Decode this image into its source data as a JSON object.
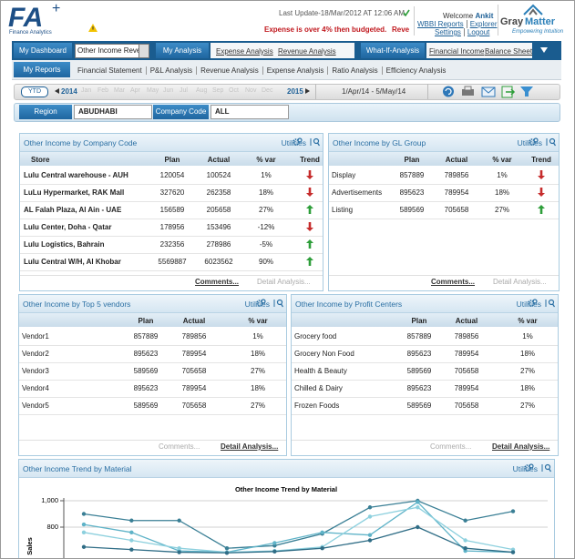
{
  "header": {
    "logo": "FA",
    "logo_mark": "+",
    "logo_sub": "Finance Analytics",
    "last_update": "Last Update-18/Mar/2012 AT 12:06 AM",
    "alert": "Expense is over 4% then budgeted.",
    "alert_more": "Reve",
    "welcome": "Welcome",
    "user": "Ankit",
    "links": [
      "WBBI Reports",
      "Explorer",
      "Settings",
      "Logout"
    ],
    "brand": "Gray",
    "brand2": "Matter",
    "tagline": "Empowering Intuition"
  },
  "nav": {
    "dashboard": "My Dashboard",
    "dashboard_select": "Other Income Reve",
    "analysis": "My Analysis",
    "analysis_links": [
      "Expense Analysis",
      "Revenue Analysis"
    ],
    "whatif": "What-If-Analysis",
    "whatif_links": [
      "Financial Income",
      "Balance Sheet"
    ],
    "reports": "My Reports",
    "report_links": [
      "Financial Statement",
      "P&L Analysis",
      "Revenue Analysis",
      "Expense Analysis",
      "Ratio Analysis",
      "Efficiency Analysis"
    ]
  },
  "timeline": {
    "period": "YTD",
    "start_year": "2014",
    "months": [
      "Jan",
      "Feb",
      "Mar",
      "Apr",
      "May",
      "Jun",
      "Jul",
      "Aug",
      "Sep",
      "Oct",
      "Nov",
      "Dec"
    ],
    "end_year": "2015",
    "range": "1/Apr/14 - 5/May/14"
  },
  "filters": {
    "region_label": "Region",
    "region": "ABUDHABI",
    "company_label": "Company Code",
    "company": "ALL"
  },
  "panels": [
    {
      "title": "Other Income by Company Code",
      "utilities": "Utilities",
      "name_column": "Store",
      "columns": [
        "Plan",
        "Actual",
        "% var",
        "Trend"
      ],
      "rows": [
        [
          "Lulu Central warehouse - AUH",
          "120054",
          "100524",
          "1%"
        ],
        [
          "LuLu Hypermarket, RAK Mall",
          "327620",
          "262358",
          "18%"
        ],
        [
          "AL Falah Plaza, Al Ain - UAE",
          "156589",
          "205658",
          "27%"
        ],
        [
          "Lulu Center, Doha - Qatar",
          "178956",
          "153496",
          "-12%"
        ],
        [
          "Lulu Logistics, Bahrain",
          "232356",
          "278986",
          "-5%"
        ],
        [
          "Lulu Central W/H, Al Khobar",
          "5569887",
          "6023562",
          "90%"
        ]
      ],
      "footer": [
        "Comments...",
        "Detail Analysis..."
      ]
    },
    {
      "title": "Other Income by GL Group",
      "utilities": "Utilities",
      "columns": [
        "Plan",
        "Actual",
        "% var",
        "Trend"
      ],
      "rows": [
        [
          "Display",
          "857889",
          "789856",
          "1%"
        ],
        [
          "Advertisements",
          "895623",
          "789954",
          "18%"
        ],
        [
          "Listing",
          "589569",
          "705658",
          "27%"
        ]
      ],
      "footer": [
        "Comments...",
        "Detail Analysis..."
      ]
    },
    {
      "title": "Other Income by Top 5 vendors",
      "utilities": "Utilities",
      "columns": [
        "Plan",
        "Actual",
        "% var"
      ],
      "rows": [
        [
          "Vendor1",
          "857889",
          "789856",
          "1%"
        ],
        [
          "Vendor2",
          "895623",
          "789954",
          "18%"
        ],
        [
          "Vendor3",
          "589569",
          "705658",
          "27%"
        ],
        [
          "Vendor4",
          "895623",
          "789954",
          "18%"
        ],
        [
          "Vendor5",
          "589569",
          "705658",
          "27%"
        ]
      ],
      "footer": [
        "Comments...",
        "Detail Analysis..."
      ]
    },
    {
      "title": "Other Income by Profit Centers",
      "utilities": "Utilities",
      "columns": [
        "Plan",
        "Actual",
        "% var"
      ],
      "rows": [
        [
          "Grocery food",
          "857889",
          "789856",
          "1%"
        ],
        [
          "Grocery Non Food",
          "895623",
          "789954",
          "18%"
        ],
        [
          "Health & Beauty",
          "589569",
          "705658",
          "27%"
        ],
        [
          "Chilled & Dairy",
          "895623",
          "789954",
          "18%"
        ],
        [
          "Frozen Foods",
          "589569",
          "705658",
          "27%"
        ]
      ],
      "footer": [
        "Comments...",
        "Detail Analysis..."
      ]
    }
  ],
  "trend": {
    "title": "Other Income Trend by Material",
    "utilities": "Utilities",
    "chart_data": {
      "type": "line",
      "title": "Other Income Trend by Material",
      "y_label": "Sales",
      "categories": [
        null,
        null,
        null,
        null,
        null,
        null,
        null,
        null,
        null,
        null
      ],
      "ylim": [
        600,
        1000
      ],
      "yticks": [
        {
          "value": 1000,
          "label": "1,000"
        },
        800
      ],
      "grid": true,
      "series": [
        {
          "color": "#3a7f95",
          "values": [
            900,
            850,
            850,
            640,
            660,
            750,
            950,
            1000,
            850,
            920
          ]
        },
        {
          "color": "#5fb3c8",
          "values": [
            820,
            760,
            620,
            610,
            680,
            760,
            740,
            990,
            620,
            610
          ]
        },
        {
          "color": "#8dd0de",
          "values": [
            760,
            700,
            640,
            610,
            620,
            650,
            880,
            950,
            700,
            630
          ]
        },
        {
          "color": "#2f6d86",
          "values": [
            650,
            630,
            610,
            605,
            615,
            640,
            700,
            800,
            640,
            610
          ]
        }
      ]
    }
  }
}
